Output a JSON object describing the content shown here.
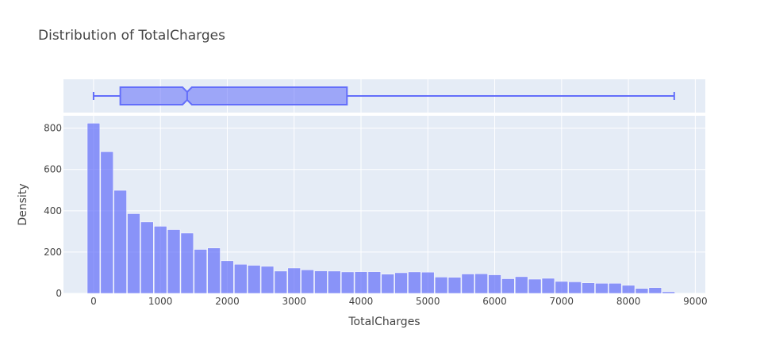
{
  "chart_data": {
    "type": "bar",
    "title": "Distribution of TotalCharges",
    "xlabel": "TotalCharges",
    "ylabel": "Density",
    "xlim": [
      -450,
      9150
    ],
    "ylim": [
      0,
      860
    ],
    "x_ticks": [
      0,
      1000,
      2000,
      3000,
      4000,
      5000,
      6000,
      7000,
      8000,
      9000
    ],
    "x_tick_labels": [
      "0",
      "1000",
      "2000",
      "3000",
      "4000",
      "5000",
      "6000",
      "7000",
      "8000",
      "9000"
    ],
    "y_ticks": [
      0,
      200,
      400,
      600,
      800
    ],
    "y_tick_labels": [
      "0",
      "200",
      "400",
      "600",
      "800"
    ],
    "grid": true,
    "colors": {
      "bar_fill": "#636efa",
      "plot_bg": "#e5ecf6",
      "grid": "#ffffff",
      "text": "#444444"
    },
    "bin_width": 200,
    "bin_start": -100,
    "values": [
      824,
      686,
      499,
      386,
      346,
      325,
      309,
      292,
      213,
      220,
      158,
      141,
      136,
      131,
      108,
      123,
      114,
      109,
      108,
      104,
      105,
      105,
      93,
      100,
      104,
      103,
      79,
      78,
      94,
      95,
      90,
      71,
      81,
      69,
      73,
      58,
      56,
      51,
      49,
      49,
      39,
      24,
      28,
      8
    ],
    "box": {
      "min": 0,
      "q1": 400,
      "median": 1400,
      "q3": 3790,
      "max": 8685,
      "notch_low": 1330,
      "notch_high": 1470
    }
  }
}
